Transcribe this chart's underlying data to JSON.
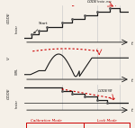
{
  "bg_color": "#f5f0e8",
  "line_color": "#1a1a1a",
  "red_dashed": "#cc0000",
  "grid_color": "#cccccc",
  "label_start": "Start",
  "label_cal": "Calibration Mode",
  "label_lock": "Lock Mode",
  "figsize": [
    1.5,
    1.42
  ],
  "dpi": 100
}
